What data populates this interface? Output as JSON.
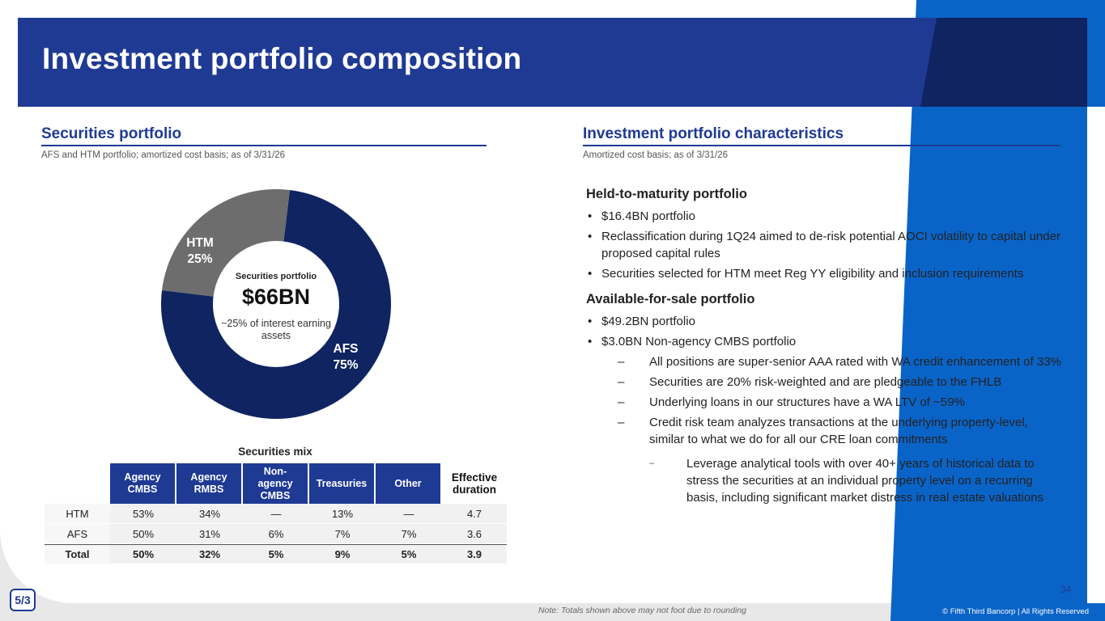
{
  "header": {
    "title": "Investment portfolio composition"
  },
  "left": {
    "title": "Securities portfolio",
    "subtitle": "AFS and HTM portfolio; amortized cost basis; as of 3/31/26",
    "donut": {
      "center_title": "Securities portfolio",
      "center_value": "$66BN",
      "center_note": "~25% of interest earning assets",
      "segments": [
        {
          "label": "AFS",
          "pct": "75%",
          "value": 75,
          "color": "#0f2461"
        },
        {
          "label": "HTM",
          "pct": "25%",
          "value": 25,
          "color": "#6d6d6d"
        }
      ]
    },
    "mix_table": {
      "title": "Securities mix",
      "columns": [
        "Agency CMBS",
        "Agency RMBS",
        "Non-agency CMBS",
        "Treasuries",
        "Other"
      ],
      "last_column": "Effective duration",
      "rows": [
        {
          "label": "HTM",
          "cells": [
            "53%",
            "34%",
            "—",
            "13%",
            "—",
            "4.7"
          ]
        },
        {
          "label": "AFS",
          "cells": [
            "50%",
            "31%",
            "6%",
            "7%",
            "7%",
            "3.6"
          ]
        },
        {
          "label": "Total",
          "cells": [
            "50%",
            "32%",
            "5%",
            "9%",
            "5%",
            "3.9"
          ]
        }
      ]
    }
  },
  "right": {
    "title": "Investment portfolio characteristics",
    "subtitle": "Amortized cost basis; as of 3/31/26",
    "htm": {
      "heading": "Held-to-maturity portfolio",
      "bullets": [
        "$16.4BN portfolio",
        "Reclassification during 1Q24 aimed to de-risk potential AOCI volatility to capital under proposed capital rules",
        "Securities selected for HTM meet Reg YY eligibility and inclusion requirements"
      ]
    },
    "afs": {
      "heading": "Available-for-sale portfolio",
      "bullets": [
        "$49.2BN portfolio",
        "$3.0BN Non-agency CMBS portfolio"
      ],
      "sub_bullets": [
        "All positions are super-senior AAA rated with WA credit enhancement of 33%",
        "Securities are 20% risk-weighted and are pledgeable to the FHLB",
        "Underlying loans in our structures have a WA LTV of ~59%",
        "Credit risk team analyzes transactions at the underlying property-level, similar to what we do for all our CRE loan commitments"
      ],
      "sub_sub_bullet": "Leverage analytical tools with over 40+ years of historical data to stress the securities at an individual property level on a recurring basis, including significant market distress in real estate valuations"
    }
  },
  "footer": {
    "page_number": "34",
    "note": "Note: Totals shown above may not foot due to rounding",
    "copyright": "© Fifth Third Bancorp | All Rights Reserved",
    "logo_text": "5/3"
  }
}
